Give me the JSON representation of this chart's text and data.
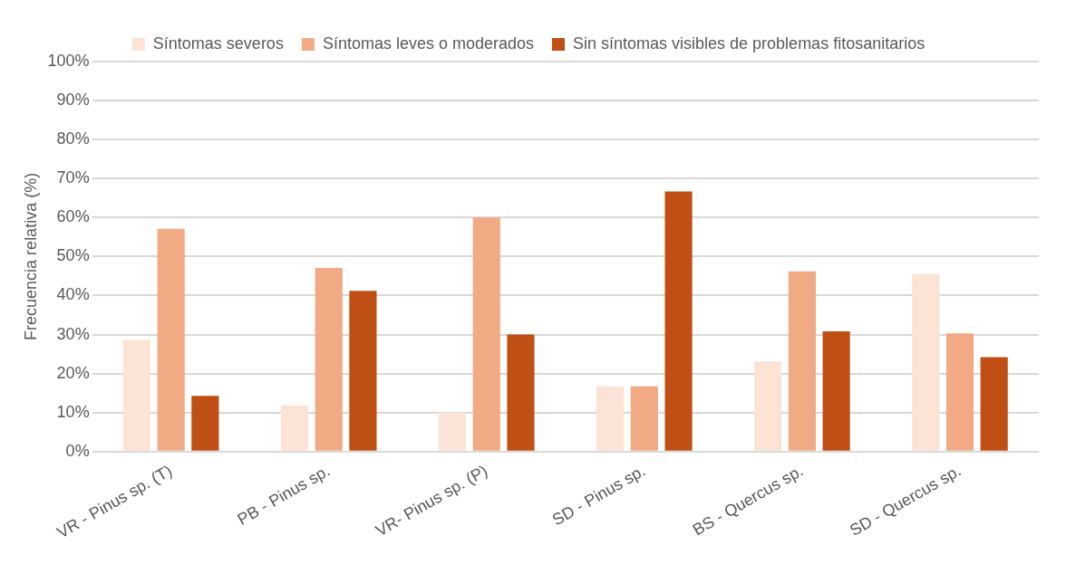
{
  "chart_data": {
    "type": "bar",
    "ylabel": "Frecuencia relativa (%)",
    "categories": [
      "VR - Pinus sp. (T)",
      "PB - Pinus sp.",
      "VR- Pinus sp. (P)",
      "SD - Pinus sp.",
      "BS - Quercus sp.",
      "SD - Quercus sp."
    ],
    "series": [
      {
        "name": "Síntomas severos",
        "color": "#fbe3d6",
        "values": [
          28.6,
          11.8,
          10,
          16.7,
          23.1,
          45.5
        ]
      },
      {
        "name": "Síntomas leves o moderados",
        "color": "#f1aa84",
        "values": [
          57.1,
          47.1,
          60,
          16.7,
          46.2,
          30.3
        ]
      },
      {
        "name": "Sin síntomas visibles de problemas fitosanitarios",
        "color": "#c04f15",
        "values": [
          14.3,
          41.2,
          30,
          66.7,
          30.8,
          24.2
        ]
      }
    ],
    "ylim": [
      0,
      100
    ],
    "yticks": [
      {
        "value": 0,
        "label": "0%"
      },
      {
        "value": 10,
        "label": "10%"
      },
      {
        "value": 20,
        "label": "20%"
      },
      {
        "value": 30,
        "label": "30%"
      },
      {
        "value": 40,
        "label": "40%"
      },
      {
        "value": 50,
        "label": "50%"
      },
      {
        "value": 60,
        "label": "60%"
      },
      {
        "value": 70,
        "label": "70%"
      },
      {
        "value": 80,
        "label": "80%"
      },
      {
        "value": 90,
        "label": "90%"
      },
      {
        "value": 100,
        "label": "100%"
      }
    ],
    "grid": "y",
    "legend": "top"
  }
}
